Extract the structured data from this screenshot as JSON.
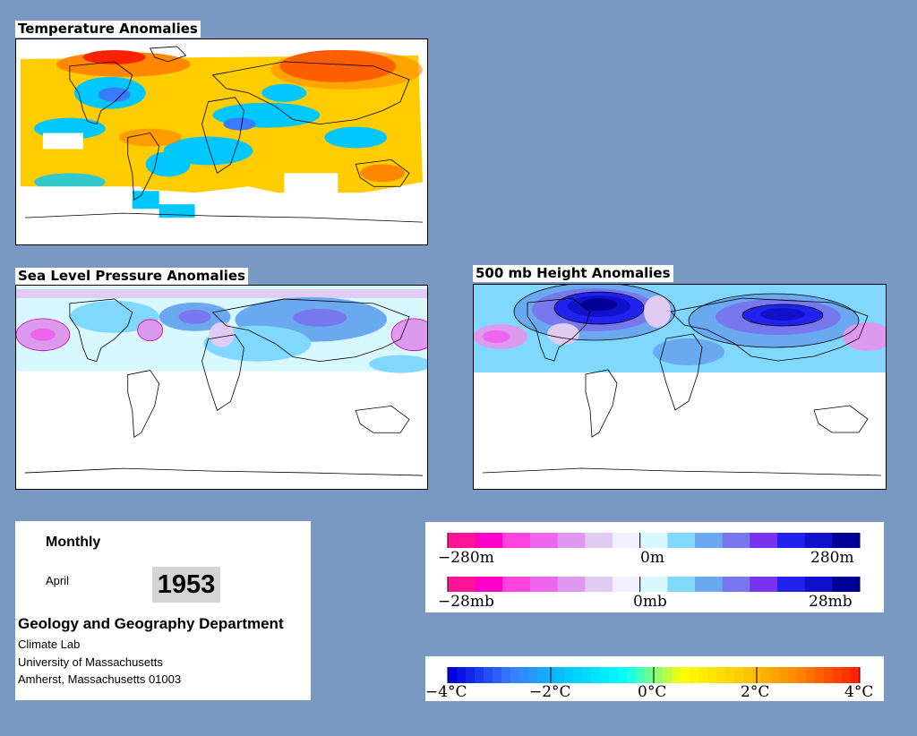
{
  "panels": {
    "temperature_title": "Temperature Anomalies",
    "slp_title": "Sea Level Pressure Anomalies",
    "height_title": "500 mb Height Anomalies"
  },
  "info": {
    "period": "Monthly",
    "month": "April",
    "year": "1953",
    "department": "Geology and Geography Department",
    "lines": [
      "Climate Lab",
      "University of Massachusetts",
      "Amherst, Massachusetts 01003"
    ]
  },
  "legends": {
    "height": {
      "min_label": "−280m",
      "mid_label": "0m",
      "max_label": "280m"
    },
    "pressure": {
      "min_label": "−28mb",
      "mid_label": "0mb",
      "max_label": "28mb"
    },
    "temperature": {
      "labels": [
        "−4°C",
        "−2°C",
        "0°C",
        "2°C",
        "4°C"
      ]
    }
  },
  "colors": {
    "page_background": "#7a99c2",
    "height_pressure_scale": [
      "#ff1493",
      "#ff00c8",
      "#ff44dd",
      "#ee66ee",
      "#dd99ee",
      "#e0ccf2",
      "#f0f0ff",
      "#d8f8ff",
      "#80d8ff",
      "#6aa8f0",
      "#7777ee",
      "#7733ee",
      "#2222ee",
      "#1111cc",
      "#000099"
    ],
    "temperature_scale": [
      "#0000e0",
      "#3a7aff",
      "#00c8ff",
      "#00ffff",
      "#ffff00",
      "#ffcc00",
      "#ff8800",
      "#ff2200"
    ]
  }
}
